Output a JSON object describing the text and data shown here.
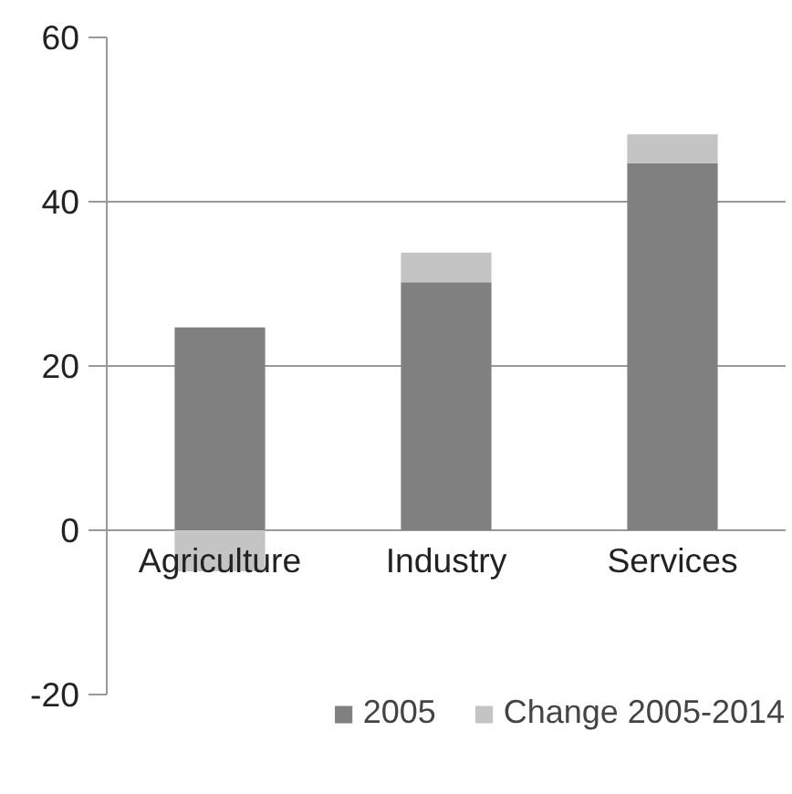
{
  "chart_data": {
    "type": "bar",
    "stacked": true,
    "categories": [
      "Agriculture",
      "Industry",
      "Services"
    ],
    "series": [
      {
        "name": "2005",
        "color": "#808080",
        "values": [
          24.7,
          30.2,
          44.7
        ]
      },
      {
        "name": "Change 2005-2014",
        "color": "#c4c4c4",
        "values": [
          -5,
          3.6,
          3.5
        ]
      }
    ],
    "ylim": [
      -20,
      60
    ],
    "yticks": [
      -20,
      0,
      20,
      40,
      60
    ],
    "grid": "y",
    "legend": "bottom"
  }
}
